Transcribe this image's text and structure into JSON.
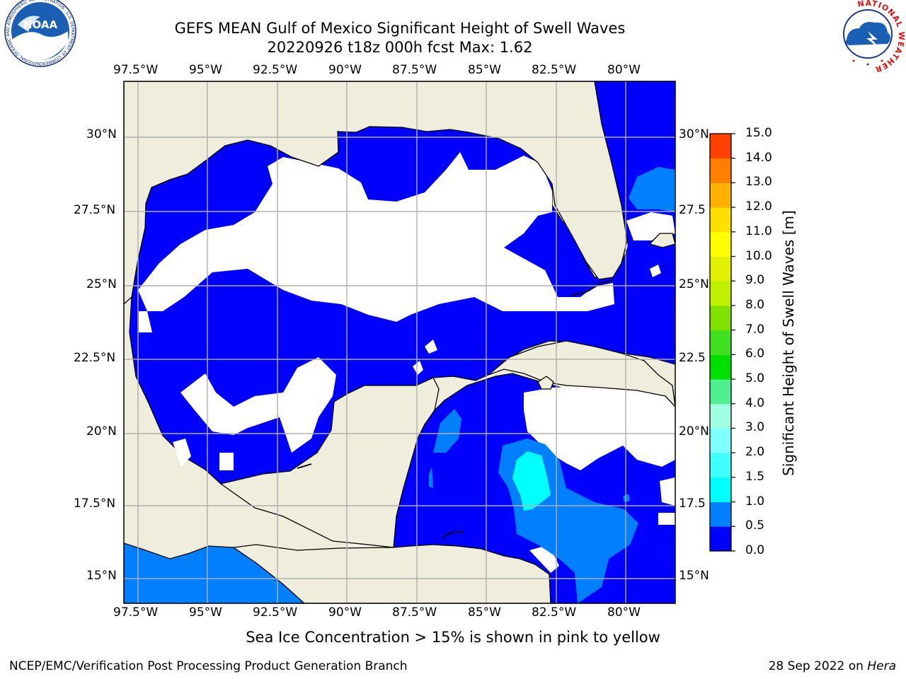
{
  "header": {
    "title_line1": "GEFS MEAN Gulf of Mexico Significant Height of Swell Waves",
    "title_line2": "20220926 t18z 000h fcst   Max: 1.62"
  },
  "logos": {
    "noaa_text": "NOAA",
    "noaa_ring_text": "NATIONAL OCEANIC AND ATMOSPHERIC ADMINISTRATION · U.S. DEPARTMENT OF COMMERCE",
    "nws_ring_text": "NATIONAL WEATHER SERVICE"
  },
  "map": {
    "lon_labels": [
      "97.5°W",
      "95°W",
      "92.5°W",
      "90°W",
      "87.5°W",
      "85°W",
      "82.5°W",
      "80°W"
    ],
    "lat_labels_left": [
      "30°N",
      "27.5°N",
      "25°N",
      "22.5°N",
      "20°N",
      "17.5°N",
      "15°N"
    ],
    "lat_labels_right": [
      "30°N",
      "27.5",
      "25°N",
      "22.5",
      "20°N",
      "17.5",
      "15°N"
    ],
    "colors": {
      "land": "#efeedc",
      "ocean_low": "#0000ff",
      "ocean_mid": "#0080ff",
      "ocean_high": "#00ffff",
      "below_threshold": "#ffffff",
      "grid": "#b0b0b0"
    }
  },
  "colorbar": {
    "title": "Significant Height of Swell Waves [m]",
    "tick_labels": [
      "0.0",
      "0.5",
      "1.0",
      "1.5",
      "2.0",
      "3.0",
      "4.0",
      "5.0",
      "6.0",
      "7.0",
      "8.0",
      "9.0",
      "10.0",
      "11.0",
      "12.0",
      "13.0",
      "14.0",
      "15.0"
    ],
    "colors": [
      "#0000ff",
      "#0080ff",
      "#00ffff",
      "#40ffff",
      "#80ffff",
      "#a0ffe0",
      "#50f090",
      "#00e000",
      "#40e020",
      "#80e000",
      "#c0f000",
      "#e0f000",
      "#ffff00",
      "#ffe000",
      "#ffb000",
      "#ff8000",
      "#ff4000",
      "#ff0000"
    ]
  },
  "caption": "Sea Ice Concentration > 15% is shown in pink to yellow",
  "footer": {
    "left": "NCEP/EMC/Verification Post Processing Product Generation Branch",
    "date": "28 Sep 2022 on",
    "host": "Hera"
  }
}
